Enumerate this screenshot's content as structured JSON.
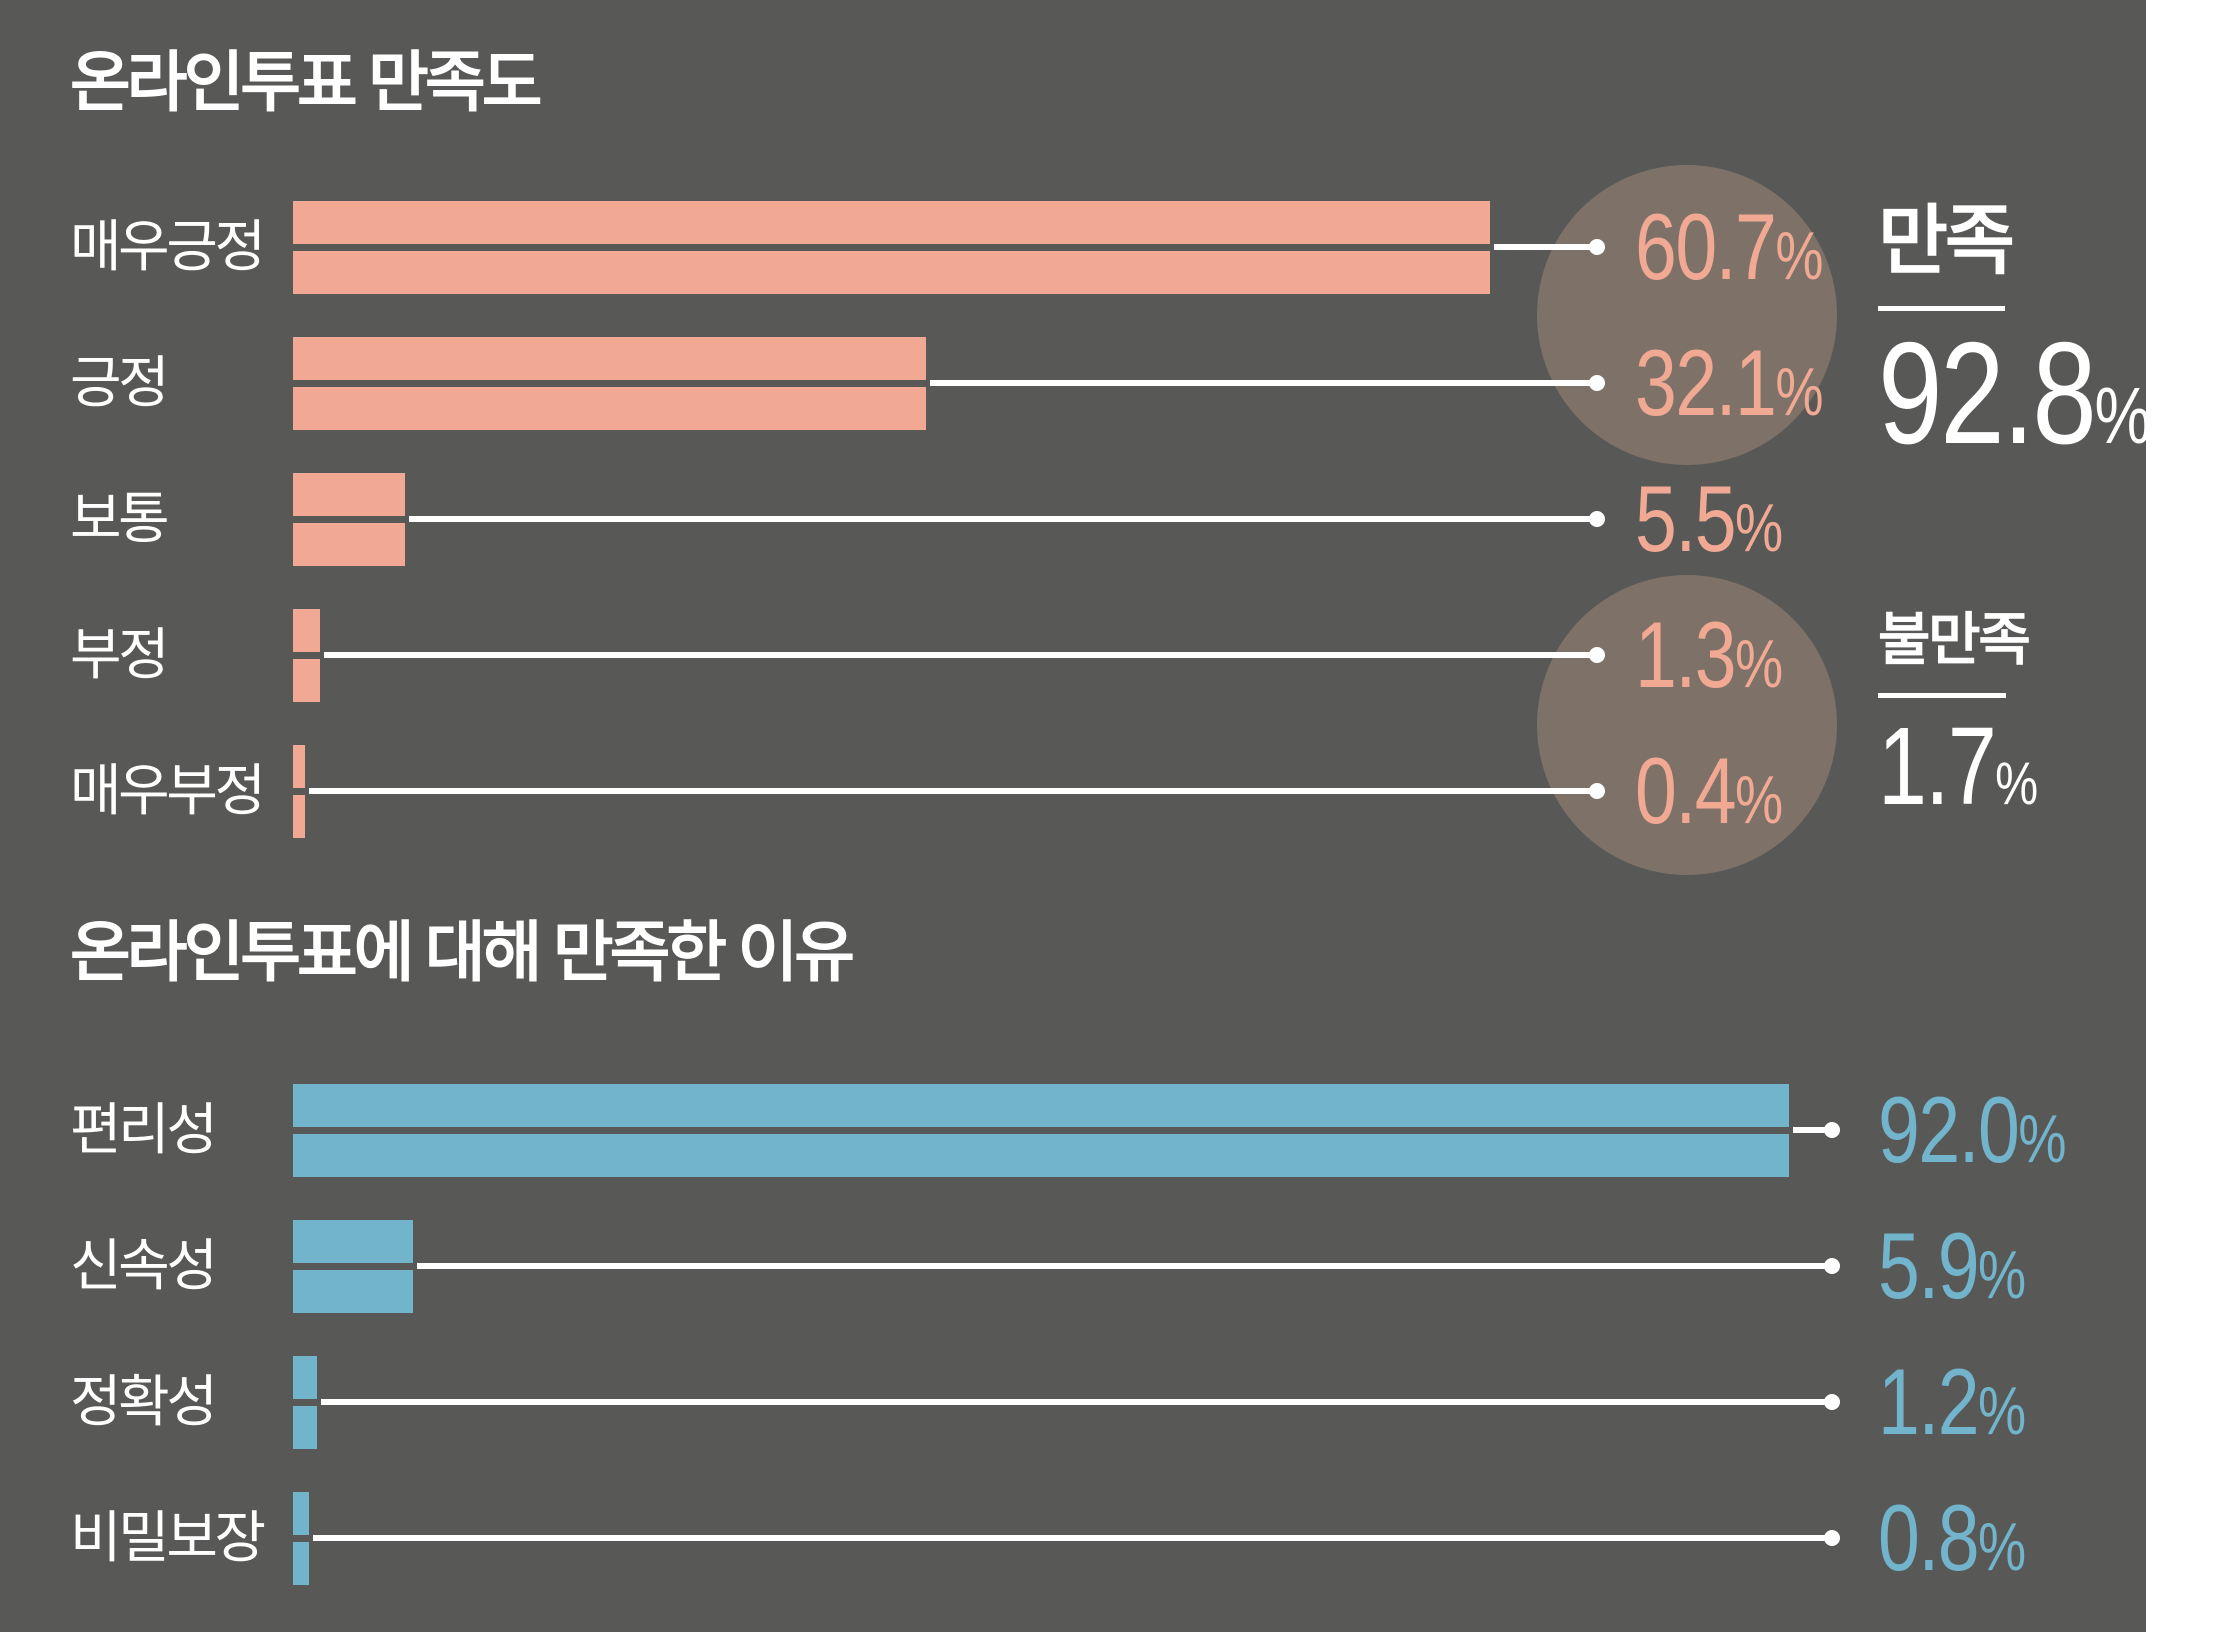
{
  "colors": {
    "background_panel": "#585857",
    "salmon": "#F1A994",
    "blue": "#71B4CC",
    "white": "#FFFFFF",
    "highlight_circle": "#7E7268"
  },
  "unit_suffix": "%",
  "chart_data": [
    {
      "type": "bar",
      "orientation": "horizontal",
      "title": "온라인투표 만족도",
      "categories": [
        "매우긍정",
        "긍정",
        "보통",
        "부정",
        "매우부정"
      ],
      "values": [
        60.7,
        32.1,
        5.5,
        1.3,
        0.4
      ],
      "value_labels": [
        "60.7",
        "32.1",
        "5.5",
        "1.3",
        "0.4"
      ],
      "unit": "%",
      "bar_color": "#F1A994",
      "value_color": "#F1A994",
      "xlim": [
        0,
        62
      ],
      "grid": false,
      "legend": false,
      "summary": [
        {
          "label": "만족",
          "value": "92.8",
          "unit": "%"
        },
        {
          "label": "불만족",
          "value": "1.7",
          "unit": "%"
        }
      ]
    },
    {
      "type": "bar",
      "orientation": "horizontal",
      "title": "온라인투표에 대해 만족한 이유",
      "categories": [
        "편리성",
        "신속성",
        "정확성",
        "비밀보장"
      ],
      "values": [
        92.0,
        5.9,
        1.2,
        0.8
      ],
      "value_labels": [
        "92.0",
        "5.9",
        "1.2",
        "0.8"
      ],
      "unit": "%",
      "bar_color": "#71B4CC",
      "value_color": "#71B4CC",
      "xlim": [
        0,
        95
      ],
      "grid": false,
      "legend": false
    }
  ]
}
